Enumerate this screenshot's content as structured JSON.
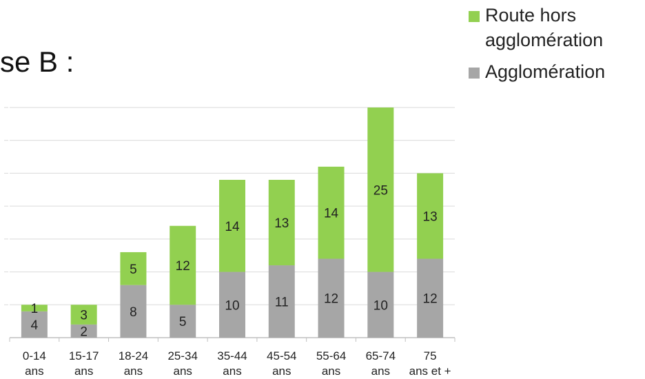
{
  "caption": "se B :",
  "colors": {
    "agglomeration": "#a6a6a6",
    "route": "#92d050",
    "grid": "#d9d9d9",
    "axis": "#bfbfbf"
  },
  "chart_data": {
    "type": "bar",
    "stacked": true,
    "categories": [
      "0-14 ans",
      "15-17 ans",
      "18-24 ans",
      "25-34 ans",
      "35-44 ans",
      "45-54 ans",
      "55-64 ans",
      "65-74 ans",
      "75 ans et +"
    ],
    "series": [
      {
        "name": "Agglomération",
        "values": [
          4,
          2,
          8,
          5,
          10,
          11,
          12,
          10,
          12
        ]
      },
      {
        "name": "Route hors agglomération",
        "values": [
          1,
          3,
          5,
          12,
          14,
          13,
          14,
          25,
          13
        ]
      }
    ],
    "ylim": [
      0,
      35
    ],
    "grid": true,
    "legend_position": "top-right"
  }
}
